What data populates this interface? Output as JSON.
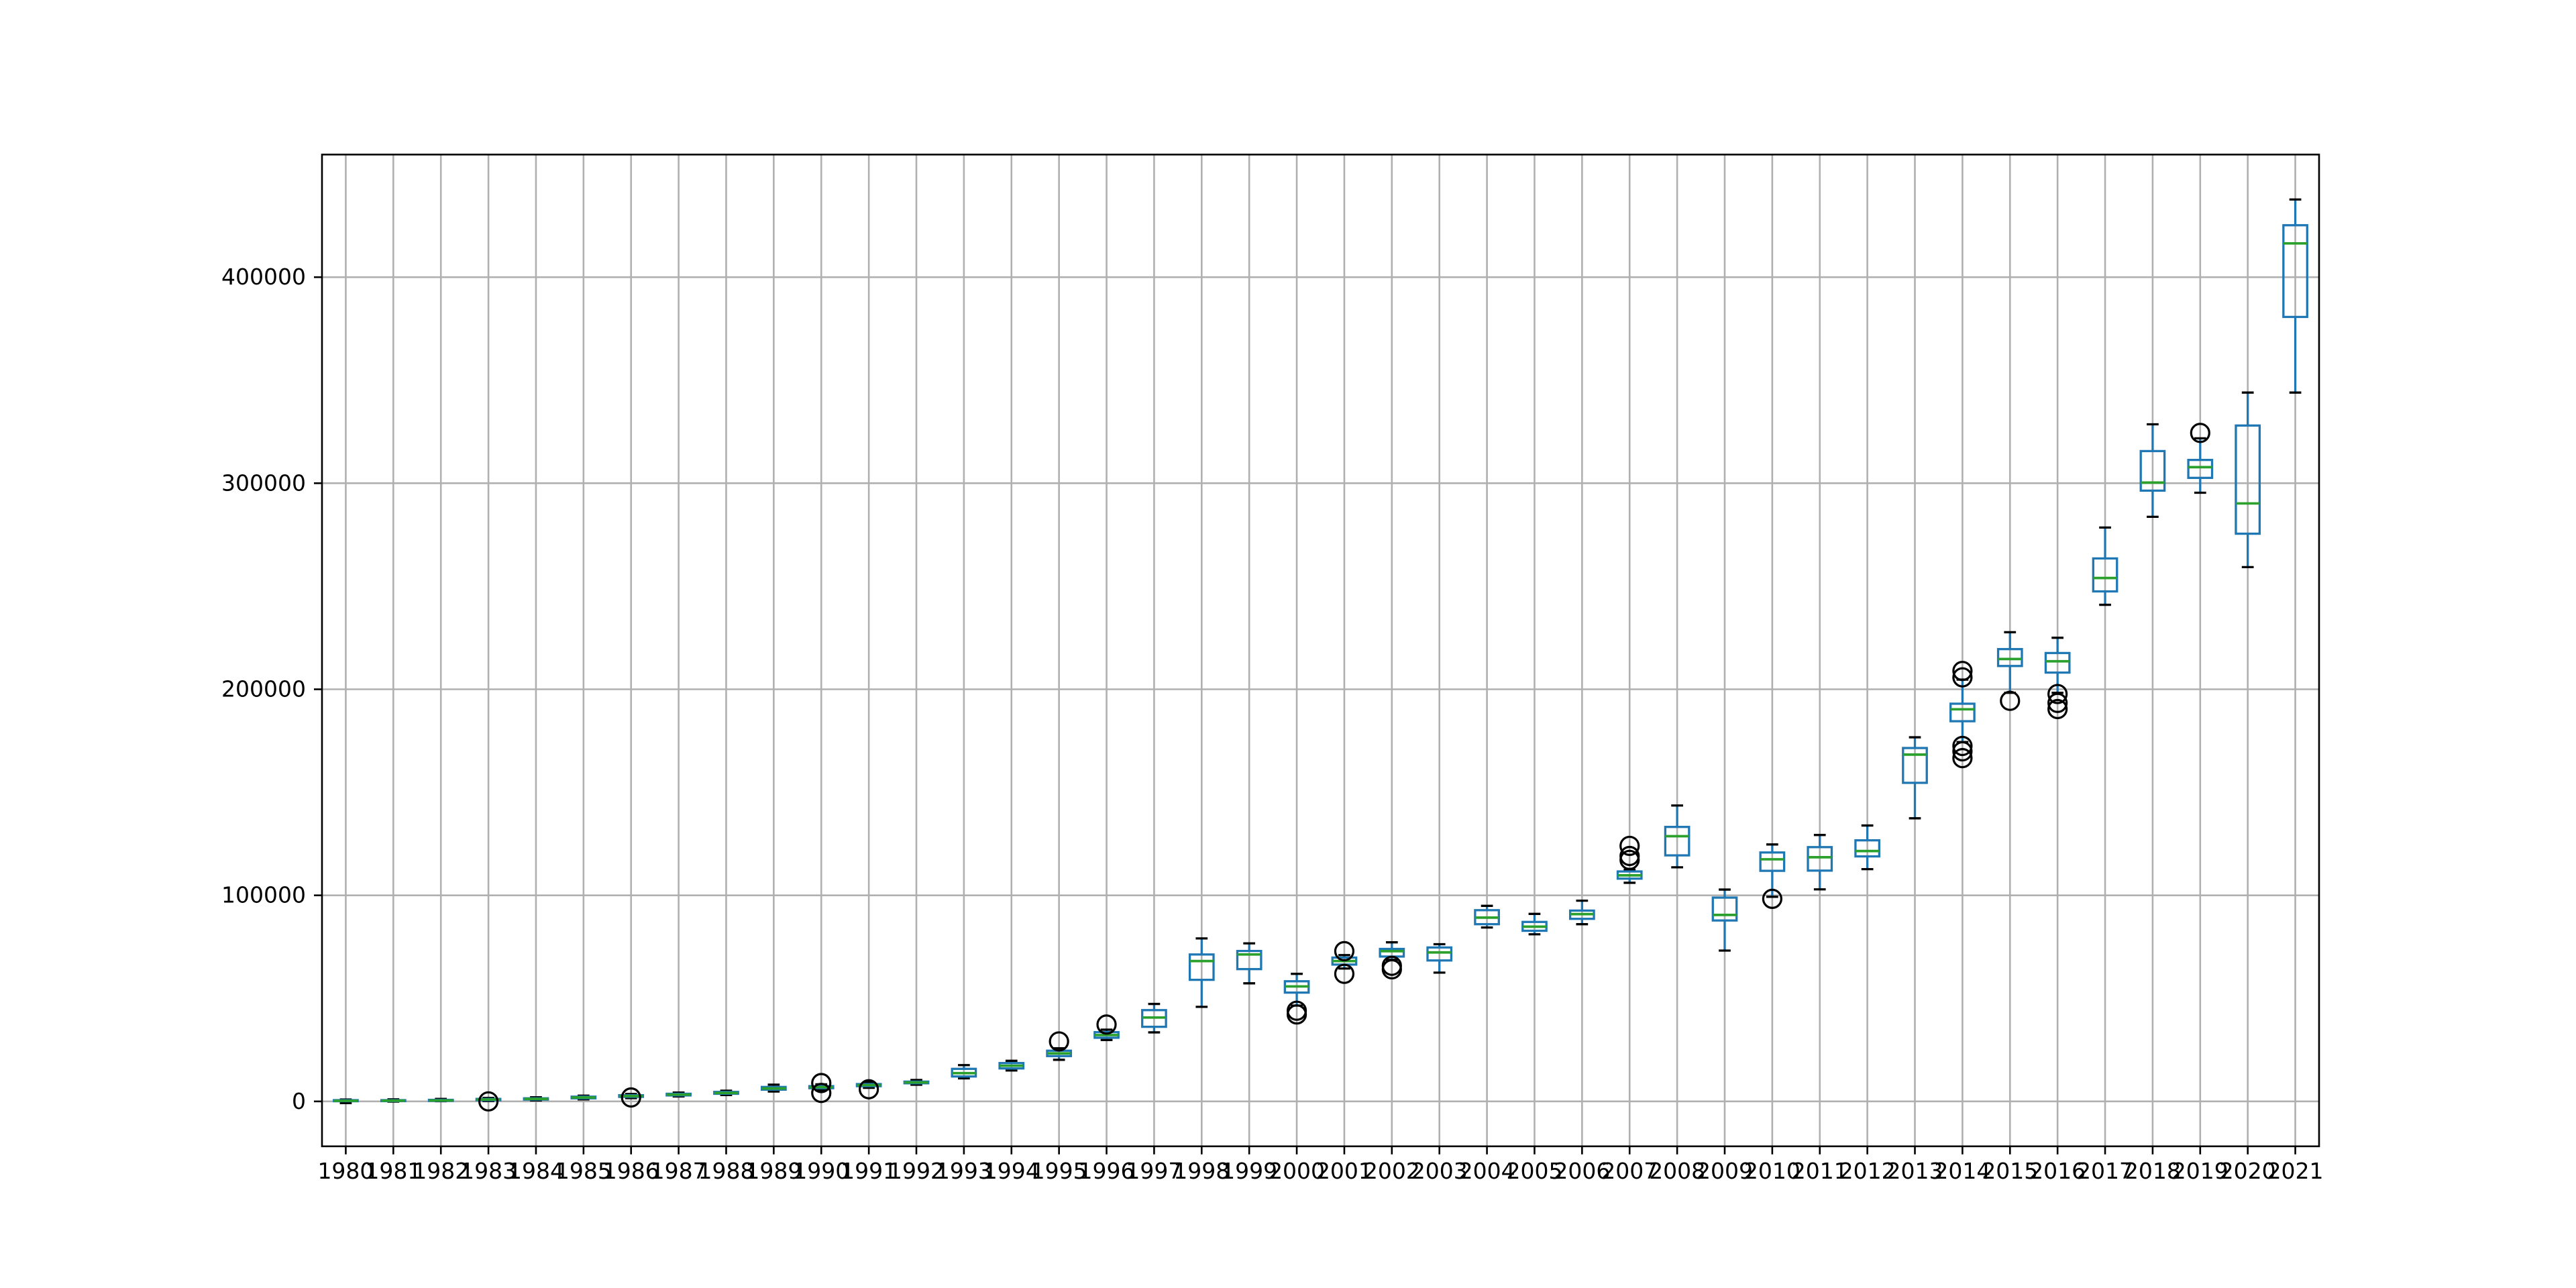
{
  "chart_data": {
    "type": "boxplot",
    "title": "",
    "xlabel": "",
    "ylabel": "",
    "grid": true,
    "legend_visible": false,
    "y_ticks": [
      0,
      100000,
      200000,
      300000,
      400000
    ],
    "y_tick_labels": [
      "0",
      "100000",
      "200000",
      "300000",
      "400000"
    ],
    "ylim": [
      -21800,
      459500
    ],
    "categories": [
      "1980",
      "1981",
      "1982",
      "1983",
      "1984",
      "1985",
      "1986",
      "1987",
      "1988",
      "1989",
      "1990",
      "1991",
      "1992",
      "1993",
      "1994",
      "1995",
      "1996",
      "1997",
      "1998",
      "1999",
      "2000",
      "2001",
      "2002",
      "2003",
      "2004",
      "2005",
      "2006",
      "2007",
      "2008",
      "2009",
      "2010",
      "2011",
      "2012",
      "2013",
      "2014",
      "2015",
      "2016",
      "2017",
      "2018",
      "2019",
      "2020",
      "2021"
    ],
    "series": [
      {
        "year": "1980",
        "whislo": -800,
        "q1": 100,
        "med": 300,
        "q3": 600,
        "whishi": 900,
        "fliers": []
      },
      {
        "year": "1981",
        "whislo": -100,
        "q1": 150,
        "med": 350,
        "q3": 600,
        "whishi": 1000,
        "fliers": []
      },
      {
        "year": "1982",
        "whislo": 100,
        "q1": 250,
        "med": 450,
        "q3": 750,
        "whishi": 1200,
        "fliers": []
      },
      {
        "year": "1983",
        "whislo": 200,
        "q1": 600,
        "med": 900,
        "q3": 1200,
        "whishi": 1700,
        "fliers": [
          0
        ]
      },
      {
        "year": "1984",
        "whislo": 500,
        "q1": 900,
        "med": 1200,
        "q3": 1500,
        "whishi": 2000,
        "fliers": []
      },
      {
        "year": "1985",
        "whislo": 1000,
        "q1": 1500,
        "med": 1900,
        "q3": 2300,
        "whishi": 2800,
        "fliers": []
      },
      {
        "year": "1986",
        "whislo": 1600,
        "q1": 2200,
        "med": 2600,
        "q3": 3000,
        "whishi": 3600,
        "fliers": [
          1900
        ]
      },
      {
        "year": "1987",
        "whislo": 2400,
        "q1": 2900,
        "med": 3300,
        "q3": 3700,
        "whishi": 4300,
        "fliers": []
      },
      {
        "year": "1988",
        "whislo": 3100,
        "q1": 3700,
        "med": 4100,
        "q3": 4600,
        "whishi": 5200,
        "fliers": []
      },
      {
        "year": "1989",
        "whislo": 4800,
        "q1": 5700,
        "med": 6300,
        "q3": 7000,
        "whishi": 8100,
        "fliers": []
      },
      {
        "year": "1990",
        "whislo": 5500,
        "q1": 6400,
        "med": 6900,
        "q3": 7400,
        "whishi": 8300,
        "fliers": [
          8900,
          4100
        ]
      },
      {
        "year": "1991",
        "whislo": 6600,
        "q1": 7400,
        "med": 7900,
        "q3": 8400,
        "whishi": 9300,
        "fliers": [
          5900
        ]
      },
      {
        "year": "1992",
        "whislo": 8100,
        "q1": 8800,
        "med": 9200,
        "q3": 9600,
        "whishi": 10400,
        "fliers": []
      },
      {
        "year": "1993",
        "whislo": 11200,
        "q1": 12100,
        "med": 13700,
        "q3": 15800,
        "whishi": 17600,
        "fliers": []
      },
      {
        "year": "1994",
        "whislo": 15000,
        "q1": 16000,
        "med": 17300,
        "q3": 18600,
        "whishi": 19700,
        "fliers": []
      },
      {
        "year": "1995",
        "whislo": 20200,
        "q1": 22000,
        "med": 23300,
        "q3": 24600,
        "whishi": 25800,
        "fliers": [
          29100
        ]
      },
      {
        "year": "1996",
        "whislo": 29800,
        "q1": 30900,
        "med": 32200,
        "q3": 33600,
        "whishi": 34800,
        "fliers": [
          37300
        ]
      },
      {
        "year": "1997",
        "whislo": 33500,
        "q1": 36200,
        "med": 40700,
        "q3": 44300,
        "whishi": 47300,
        "fliers": []
      },
      {
        "year": "1998",
        "whislo": 45900,
        "q1": 59000,
        "med": 68100,
        "q3": 71300,
        "whishi": 79100,
        "fliers": []
      },
      {
        "year": "1999",
        "whislo": 57300,
        "q1": 64200,
        "med": 71300,
        "q3": 73000,
        "whishi": 76700,
        "fliers": []
      },
      {
        "year": "2000",
        "whislo": 46500,
        "q1": 52800,
        "med": 55800,
        "q3": 58300,
        "whishi": 61900,
        "fliers": [
          44000,
          42200
        ]
      },
      {
        "year": "2001",
        "whislo": 64500,
        "q1": 66400,
        "med": 68100,
        "q3": 69800,
        "whishi": 71000,
        "fliers": [
          72900,
          61900
        ]
      },
      {
        "year": "2002",
        "whislo": 68700,
        "q1": 70300,
        "med": 72900,
        "q3": 74000,
        "whishi": 77200,
        "fliers": [
          65800,
          64100
        ]
      },
      {
        "year": "2003",
        "whislo": 62500,
        "q1": 68400,
        "med": 72300,
        "q3": 74700,
        "whishi": 76300,
        "fliers": []
      },
      {
        "year": "2004",
        "whislo": 84400,
        "q1": 86000,
        "med": 89200,
        "q3": 92800,
        "whishi": 94900,
        "fliers": []
      },
      {
        "year": "2005",
        "whislo": 81100,
        "q1": 82800,
        "med": 84800,
        "q3": 87100,
        "whishi": 91000,
        "fliers": []
      },
      {
        "year": "2006",
        "whislo": 86000,
        "q1": 88600,
        "med": 90900,
        "q3": 92600,
        "whishi": 97400,
        "fliers": []
      },
      {
        "year": "2007",
        "whislo": 106100,
        "q1": 108100,
        "med": 109700,
        "q3": 111600,
        "whishi": 112400,
        "fliers": [
          124000,
          119100,
          117200
        ]
      },
      {
        "year": "2008",
        "whislo": 113600,
        "q1": 119400,
        "med": 128700,
        "q3": 133200,
        "whishi": 143600,
        "fliers": []
      },
      {
        "year": "2009",
        "whislo": 73200,
        "q1": 87800,
        "med": 90500,
        "q3": 98900,
        "whishi": 102800,
        "fliers": []
      },
      {
        "year": "2010",
        "whislo": 99300,
        "q1": 111900,
        "med": 117500,
        "q3": 120800,
        "whishi": 124700,
        "fliers": [
          98300
        ]
      },
      {
        "year": "2011",
        "whislo": 102900,
        "q1": 112000,
        "med": 118500,
        "q3": 123400,
        "whishi": 129300,
        "fliers": []
      },
      {
        "year": "2012",
        "whislo": 112700,
        "q1": 118900,
        "med": 121500,
        "q3": 126700,
        "whishi": 133900,
        "fliers": []
      },
      {
        "year": "2013",
        "whislo": 137400,
        "q1": 154600,
        "med": 168300,
        "q3": 171500,
        "whishi": 176700,
        "fliers": []
      },
      {
        "year": "2014",
        "whislo": 174400,
        "q1": 184500,
        "med": 190300,
        "q3": 193000,
        "whishi": 204700,
        "fliers": [
          208900,
          205800,
          172500,
          169900,
          166600
        ]
      },
      {
        "year": "2015",
        "whislo": 198300,
        "q1": 211300,
        "med": 214700,
        "q3": 219500,
        "whishi": 227700,
        "fliers": [
          194400
        ]
      },
      {
        "year": "2016",
        "whislo": 198300,
        "q1": 208100,
        "med": 213600,
        "q3": 217600,
        "whishi": 225000,
        "fliers": [
          197700,
          193400,
          190400
        ]
      },
      {
        "year": "2017",
        "whislo": 241000,
        "q1": 247500,
        "med": 254000,
        "q3": 263500,
        "whishi": 278500,
        "fliers": []
      },
      {
        "year": "2018",
        "whislo": 283700,
        "q1": 296400,
        "med": 300300,
        "q3": 315600,
        "whishi": 328600,
        "fliers": []
      },
      {
        "year": "2019",
        "whislo": 295400,
        "q1": 302600,
        "med": 307800,
        "q3": 311300,
        "whishi": 321800,
        "fliers": [
          324400
        ]
      },
      {
        "year": "2020",
        "whislo": 259300,
        "q1": 275500,
        "med": 290200,
        "q3": 328000,
        "whishi": 344000,
        "fliers": []
      },
      {
        "year": "2021",
        "whislo": 344000,
        "q1": 380700,
        "med": 416400,
        "q3": 425200,
        "whishi": 437700,
        "fliers": []
      }
    ]
  },
  "style": {
    "box_color": "#1f77b4",
    "whisker_color": "#1f77b4",
    "cap_color": "#000000",
    "median_color": "#2ca02c",
    "flier_color": "#000000",
    "grid_color": "#b0b0b0",
    "spine_color": "#000000",
    "background": "#ffffff"
  }
}
